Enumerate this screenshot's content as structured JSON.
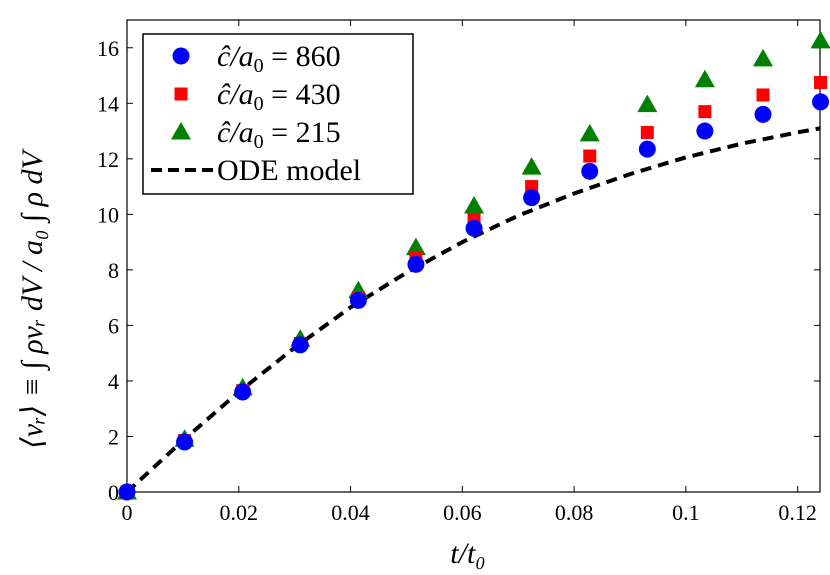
{
  "chart_data": {
    "type": "scatter",
    "title": "",
    "xlabel": "t/t₀",
    "ylabel": "⟨vᵣ⟩ ≡ ∫ ρvᵣ dV / a₀ ∫ ρ dV",
    "xlim": [
      0,
      0.124
    ],
    "ylim": [
      0,
      17
    ],
    "xticks": [
      0,
      0.02,
      0.04,
      0.06,
      0.08,
      0.1,
      0.12
    ],
    "xtick_labels": [
      "0",
      "0.02",
      "0.04",
      "0.06",
      "0.08",
      "0.1",
      "0.12"
    ],
    "yticks": [
      0,
      2,
      4,
      6,
      8,
      10,
      12,
      14,
      16
    ],
    "ytick_labels": [
      "0",
      "2",
      "4",
      "6",
      "8",
      "10",
      "12",
      "14",
      "16"
    ],
    "grid": false,
    "legend_position": "top-left",
    "series": [
      {
        "name": "ĉ/a₀ = 860",
        "marker": "circle",
        "color": "#0000ff",
        "x": [
          0,
          0.0103,
          0.0207,
          0.031,
          0.0414,
          0.0517,
          0.0621,
          0.0724,
          0.0828,
          0.0931,
          0.1034,
          0.1138,
          0.1241
        ],
        "y": [
          0,
          1.8,
          3.6,
          5.3,
          6.9,
          8.2,
          9.5,
          10.6,
          11.55,
          12.35,
          13.0,
          13.6,
          14.05
        ]
      },
      {
        "name": "ĉ/a₀ = 430",
        "marker": "square",
        "color": "#ff0000",
        "x": [
          0,
          0.0103,
          0.0207,
          0.031,
          0.0414,
          0.0517,
          0.0621,
          0.0724,
          0.0828,
          0.0931,
          0.1034,
          0.1138,
          0.1241
        ],
        "y": [
          0,
          1.85,
          3.65,
          5.35,
          7.0,
          8.45,
          9.8,
          11.0,
          12.1,
          12.95,
          13.7,
          14.3,
          14.75
        ]
      },
      {
        "name": "ĉ/a₀ = 215",
        "marker": "triangle",
        "color": "#008000",
        "x": [
          0,
          0.0103,
          0.0207,
          0.031,
          0.0414,
          0.0517,
          0.0621,
          0.0724,
          0.0828,
          0.0931,
          0.1034,
          0.1138,
          0.1241
        ],
        "y": [
          0,
          1.9,
          3.75,
          5.5,
          7.25,
          8.8,
          10.3,
          11.7,
          12.9,
          13.95,
          14.85,
          15.6,
          16.25
        ]
      },
      {
        "name": "ODE model",
        "marker": "dashed-line",
        "color": "#000000",
        "x": [
          0,
          0.01,
          0.02,
          0.03,
          0.04,
          0.05,
          0.06,
          0.07,
          0.08,
          0.09,
          0.1,
          0.11,
          0.12,
          0.124
        ],
        "y": [
          0,
          1.85,
          3.6,
          5.2,
          6.65,
          7.9,
          9.0,
          9.95,
          10.75,
          11.45,
          12.05,
          12.55,
          12.95,
          13.1
        ]
      }
    ],
    "legend": {
      "entries": [
        {
          "prefix": "ĉ/a",
          "sub": "0",
          "suffix": " = 860"
        },
        {
          "prefix": "ĉ/a",
          "sub": "0",
          "suffix": " = 430"
        },
        {
          "prefix": "ĉ/a",
          "sub": "0",
          "suffix": " = 215"
        },
        {
          "prefix": "ODE model",
          "sub": "",
          "suffix": ""
        }
      ]
    }
  }
}
